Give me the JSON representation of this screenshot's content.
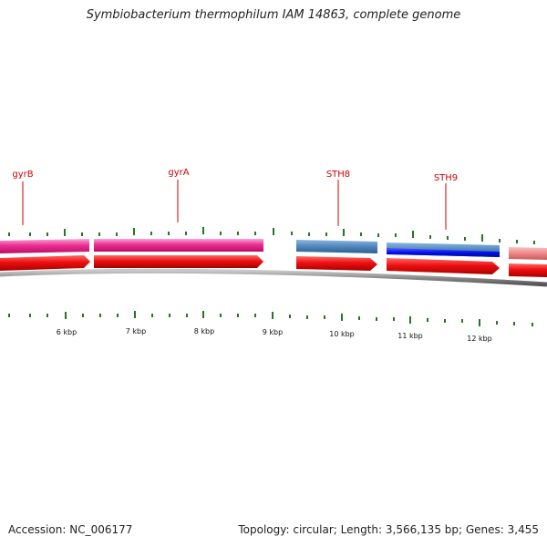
{
  "title": "Symbiobacterium thermophilum IAM 14863, complete genome",
  "accession_label": "Accession: NC_006177",
  "topology_label": "Topology: circular; Length: 3,566,135 bp; Genes: 3,455",
  "colors": {
    "gene_label": "#d00000",
    "tick": "#227722",
    "backbone": "#8c8c8c",
    "magenta_gene": "#ee2e94",
    "steel_gene": "#4f86bd",
    "blue_gene": "#0010ee",
    "pink_gene": "#ee8888",
    "cds_red": "#ee1010"
  },
  "gene_labels": [
    "gyrB",
    "gyrA",
    "STH8",
    "STH9"
  ],
  "kbp_labels": [
    "6 kbp",
    "7 kbp",
    "8 kbp",
    "9 kbp",
    "10 kbp",
    "11 kbp",
    "12 kbp"
  ]
}
